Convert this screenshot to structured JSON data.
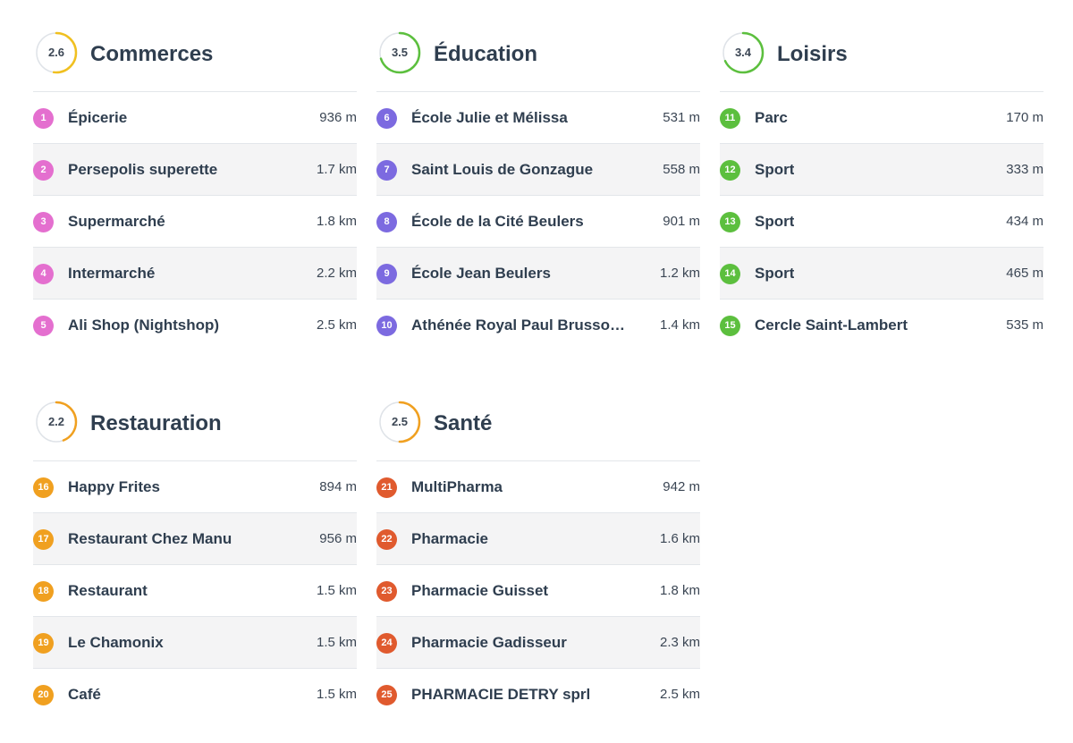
{
  "colors": {
    "commerces": "#e46fcf",
    "education": "#7c6ae0",
    "loisirs": "#5cbf3e",
    "restauration": "#f0a020",
    "sante": "#e05a2e",
    "score_ring_track": "#dfe3e8"
  },
  "sections": [
    {
      "title": "Commerces",
      "score": "2.6",
      "score_value": 2.6,
      "ring_color": "#f0c020",
      "items": [
        {
          "num": "1",
          "name": "Épicerie",
          "dist": "936 m"
        },
        {
          "num": "2",
          "name": "Persepolis superette",
          "dist": "1.7 km"
        },
        {
          "num": "3",
          "name": "Supermarché",
          "dist": "1.8 km"
        },
        {
          "num": "4",
          "name": "Intermarché",
          "dist": "2.2 km"
        },
        {
          "num": "5",
          "name": "Ali Shop (Nightshop)",
          "dist": "2.5 km"
        }
      ]
    },
    {
      "title": "Éducation",
      "score": "3.5",
      "score_value": 3.5,
      "ring_color": "#5cbf3e",
      "items": [
        {
          "num": "6",
          "name": "École Julie et Mélissa",
          "dist": "531 m"
        },
        {
          "num": "7",
          "name": "Saint Louis de Gonzague",
          "dist": "558 m"
        },
        {
          "num": "8",
          "name": "École de la Cité Beulers",
          "dist": "901 m"
        },
        {
          "num": "9",
          "name": "École Jean Beulers",
          "dist": "1.2 km"
        },
        {
          "num": "10",
          "name": "Athénée Royal Paul Brusso…",
          "dist": "1.4 km"
        }
      ]
    },
    {
      "title": "Loisirs",
      "score": "3.4",
      "score_value": 3.4,
      "ring_color": "#5cbf3e",
      "items": [
        {
          "num": "11",
          "name": "Parc",
          "dist": "170 m"
        },
        {
          "num": "12",
          "name": "Sport",
          "dist": "333 m"
        },
        {
          "num": "13",
          "name": "Sport",
          "dist": "434 m"
        },
        {
          "num": "14",
          "name": "Sport",
          "dist": "465 m"
        },
        {
          "num": "15",
          "name": "Cercle Saint-Lambert",
          "dist": "535 m"
        }
      ]
    },
    {
      "title": "Restauration",
      "score": "2.2",
      "score_value": 2.2,
      "ring_color": "#f0a020",
      "items": [
        {
          "num": "16",
          "name": "Happy Frites",
          "dist": "894 m"
        },
        {
          "num": "17",
          "name": "Restaurant Chez Manu",
          "dist": "956 m"
        },
        {
          "num": "18",
          "name": "Restaurant",
          "dist": "1.5 km"
        },
        {
          "num": "19",
          "name": "Le Chamonix",
          "dist": "1.5 km"
        },
        {
          "num": "20",
          "name": "Café",
          "dist": "1.5 km"
        }
      ]
    },
    {
      "title": "Santé",
      "score": "2.5",
      "score_value": 2.5,
      "ring_color": "#f0a020",
      "items": [
        {
          "num": "21",
          "name": "MultiPharma",
          "dist": "942 m"
        },
        {
          "num": "22",
          "name": "Pharmacie",
          "dist": "1.6 km"
        },
        {
          "num": "23",
          "name": "Pharmacie Guisset",
          "dist": "1.8 km"
        },
        {
          "num": "24",
          "name": "Pharmacie Gadisseur",
          "dist": "2.3 km"
        },
        {
          "num": "25",
          "name": "PHARMACIE DETRY sprl",
          "dist": "2.5 km"
        }
      ]
    }
  ]
}
